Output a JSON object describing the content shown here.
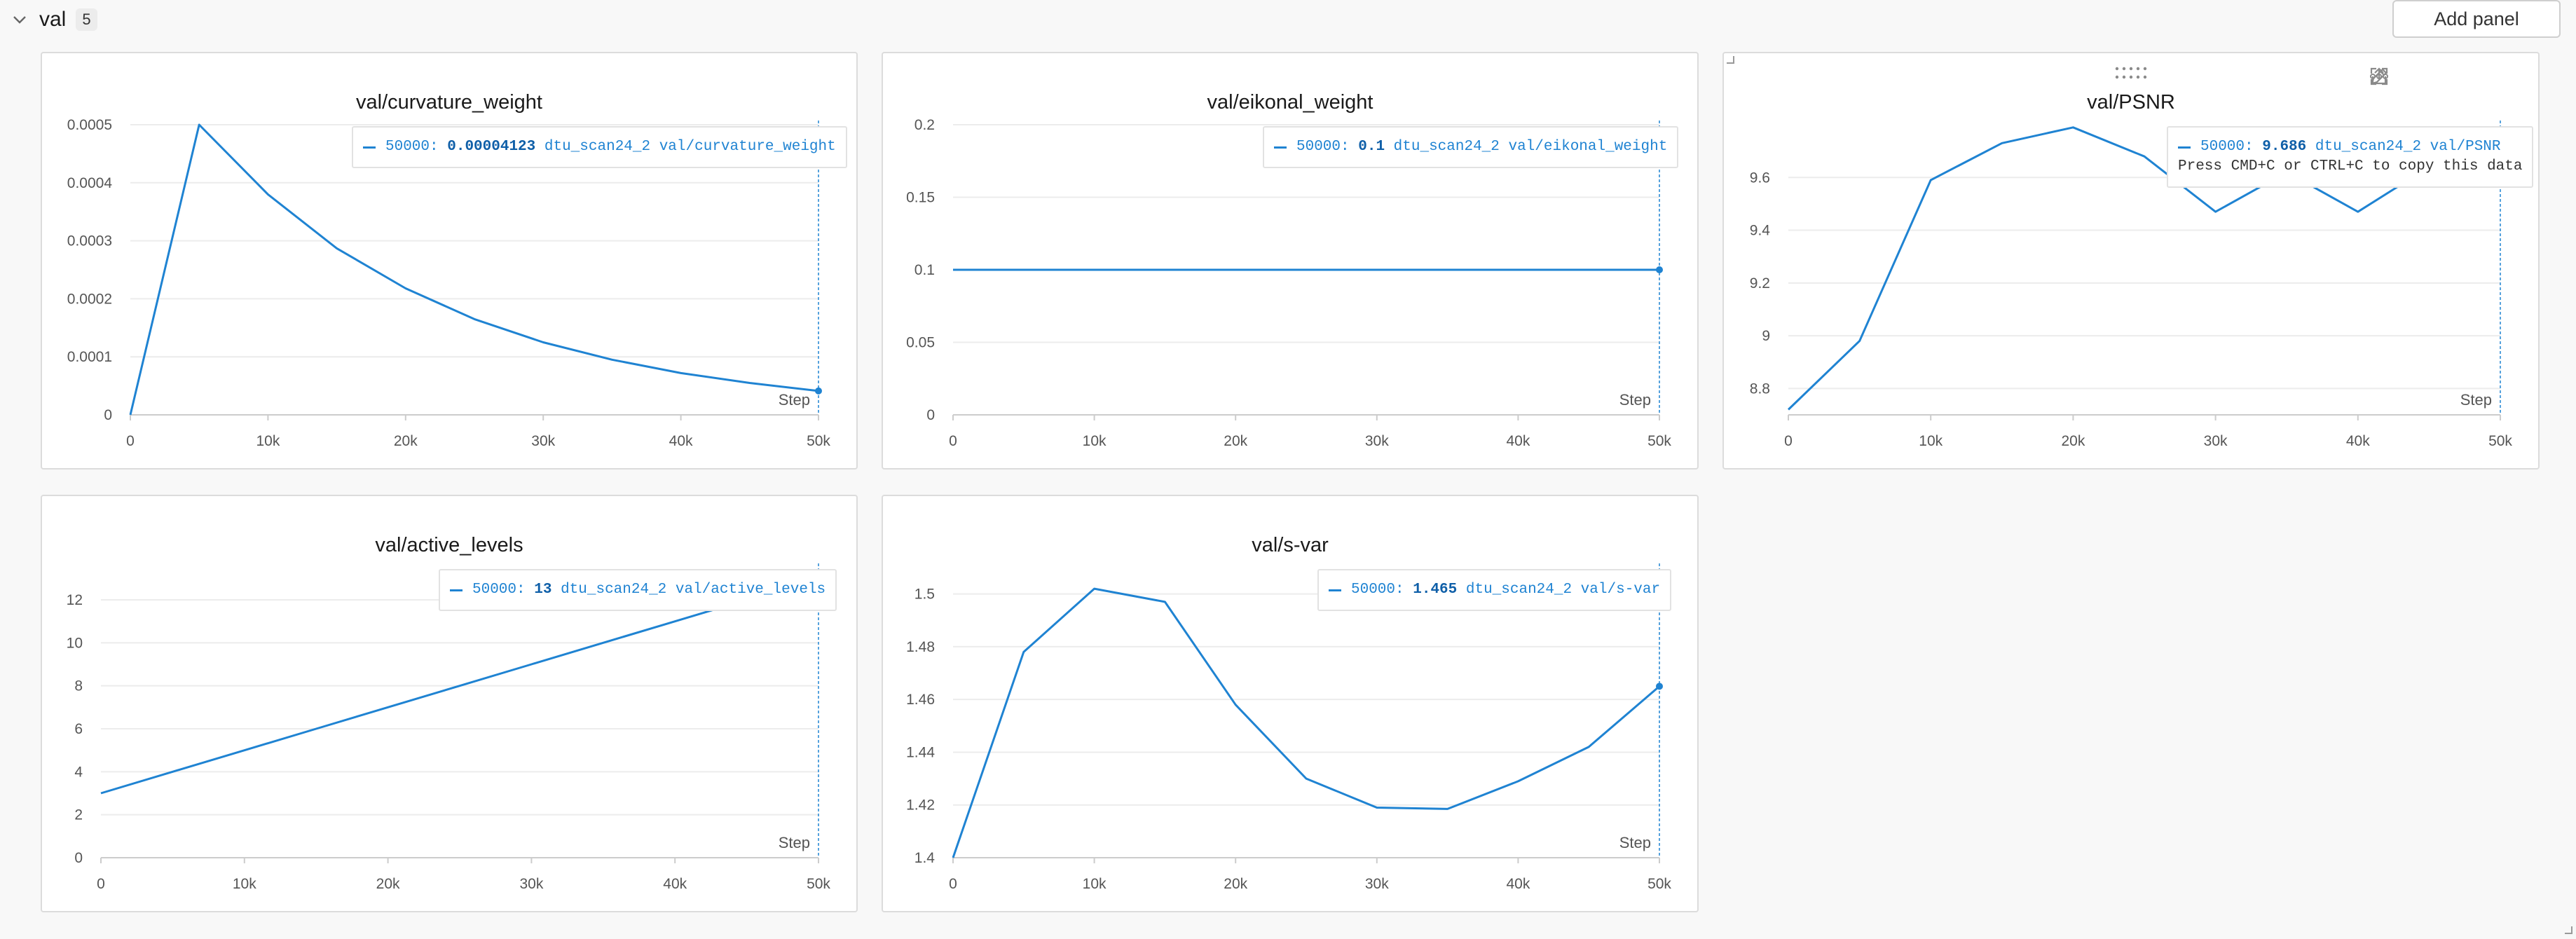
{
  "section": {
    "title": "val",
    "count": "5"
  },
  "toolbar": {
    "add_panel_label": "Add panel"
  },
  "colors": {
    "line": "#1f83d2",
    "grid": "#ececec",
    "axis": "#cccccc"
  },
  "icons": {
    "section_toggle": "chevron-down-icon",
    "panel_tools": [
      "share-icon",
      "edit-icon",
      "fullscreen-icon",
      "more-icon"
    ]
  },
  "panels": [
    {
      "title": "val/curvature_weight",
      "tooltip": {
        "step": "50000:",
        "value": "0.00004123",
        "label": "dtu_scan24_2 val/curvature_weight"
      }
    },
    {
      "title": "val/eikonal_weight",
      "tooltip": {
        "step": "50000:",
        "value": "0.1",
        "label": "dtu_scan24_2 val/eikonal_weight"
      }
    },
    {
      "title": "val/PSNR",
      "tooltip": {
        "step": "50000:",
        "value": "9.686",
        "label": "dtu_scan24_2 val/PSNR",
        "note": "Press CMD+C or CTRL+C to copy this data"
      }
    },
    {
      "title": "val/active_levels",
      "tooltip": {
        "step": "50000:",
        "value": "13",
        "label": "dtu_scan24_2 val/active_levels"
      }
    },
    {
      "title": "val/s-var",
      "tooltip": {
        "step": "50000:",
        "value": "1.465",
        "label": "dtu_scan24_2 val/s-var"
      }
    }
  ],
  "chart_data": [
    {
      "type": "line",
      "title": "val/curvature_weight",
      "xlabel": "Step",
      "xlim": [
        0,
        50000
      ],
      "ylim": [
        0,
        0.0005
      ],
      "xticks": [
        0,
        10000,
        20000,
        30000,
        40000,
        50000
      ],
      "xtick_labels": [
        "0",
        "10k",
        "20k",
        "30k",
        "40k",
        "50k"
      ],
      "yticks": [
        0,
        0.0001,
        0.0002,
        0.0003,
        0.0004,
        0.0005
      ],
      "ytick_labels": [
        "0",
        "0.0001",
        "0.0002",
        "0.0003",
        "0.0004",
        "0.0005"
      ],
      "grid": true,
      "series": [
        {
          "x": [
            0,
            5000,
            10000,
            15000,
            20000,
            25000,
            30000,
            35000,
            40000,
            45000,
            50000
          ],
          "y": [
            0,
            0.0005,
            0.00038,
            0.000287,
            0.000218,
            0.000165,
            0.000125,
            9.5e-05,
            7.2e-05,
            5.5e-05,
            4.123e-05
          ]
        }
      ]
    },
    {
      "type": "line",
      "title": "val/eikonal_weight",
      "xlabel": "Step",
      "xlim": [
        0,
        50000
      ],
      "ylim": [
        0,
        0.2
      ],
      "xticks": [
        0,
        10000,
        20000,
        30000,
        40000,
        50000
      ],
      "xtick_labels": [
        "0",
        "10k",
        "20k",
        "30k",
        "40k",
        "50k"
      ],
      "yticks": [
        0,
        0.05,
        0.1,
        0.15,
        0.2
      ],
      "ytick_labels": [
        "0",
        "0.05",
        "0.1",
        "0.15",
        "0.2"
      ],
      "grid": true,
      "series": [
        {
          "x": [
            0,
            5000,
            10000,
            15000,
            20000,
            25000,
            30000,
            35000,
            40000,
            45000,
            50000
          ],
          "y": [
            0.1,
            0.1,
            0.1,
            0.1,
            0.1,
            0.1,
            0.1,
            0.1,
            0.1,
            0.1,
            0.1
          ]
        }
      ]
    },
    {
      "type": "line",
      "title": "val/PSNR",
      "xlabel": "Step",
      "xlim": [
        0,
        50000
      ],
      "ylim": [
        8.7,
        9.8
      ],
      "xticks": [
        0,
        10000,
        20000,
        30000,
        40000,
        50000
      ],
      "xtick_labels": [
        "0",
        "10k",
        "20k",
        "30k",
        "40k",
        "50k"
      ],
      "yticks": [
        8.8,
        9,
        9.2,
        9.4,
        9.6
      ],
      "ytick_labels": [
        "8.8",
        "9",
        "9.2",
        "9.4",
        "9.6"
      ],
      "grid": true,
      "series": [
        {
          "x": [
            0,
            5000,
            10000,
            15000,
            20000,
            25000,
            30000,
            35000,
            40000,
            45000,
            50000
          ],
          "y": [
            8.72,
            8.98,
            9.59,
            9.73,
            9.79,
            9.68,
            9.47,
            9.62,
            9.47,
            9.64,
            9.686
          ]
        }
      ]
    },
    {
      "type": "line",
      "title": "val/active_levels",
      "xlabel": "Step",
      "xlim": [
        0,
        50000
      ],
      "ylim": [
        0,
        13.5
      ],
      "xticks": [
        0,
        10000,
        20000,
        30000,
        40000,
        50000
      ],
      "xtick_labels": [
        "0",
        "10k",
        "20k",
        "30k",
        "40k",
        "50k"
      ],
      "yticks": [
        0,
        2,
        4,
        6,
        8,
        10,
        12
      ],
      "ytick_labels": [
        "0",
        "2",
        "4",
        "6",
        "8",
        "10",
        "12"
      ],
      "grid": true,
      "series": [
        {
          "x": [
            0,
            5000,
            10000,
            15000,
            20000,
            25000,
            30000,
            35000,
            40000,
            45000,
            50000
          ],
          "y": [
            3,
            4,
            5,
            6,
            7,
            8,
            9,
            10,
            11,
            12,
            13
          ]
        }
      ]
    },
    {
      "type": "line",
      "title": "val/s-var",
      "xlabel": "Step",
      "xlim": [
        0,
        50000
      ],
      "ylim": [
        1.4,
        1.51
      ],
      "xticks": [
        0,
        10000,
        20000,
        30000,
        40000,
        50000
      ],
      "xtick_labels": [
        "0",
        "10k",
        "20k",
        "30k",
        "40k",
        "50k"
      ],
      "yticks": [
        1.4,
        1.42,
        1.44,
        1.46,
        1.48,
        1.5
      ],
      "ytick_labels": [
        "1.4",
        "1.42",
        "1.44",
        "1.46",
        "1.48",
        "1.5"
      ],
      "grid": true,
      "series": [
        {
          "x": [
            0,
            5000,
            10000,
            15000,
            20000,
            25000,
            30000,
            35000,
            40000,
            45000,
            50000
          ],
          "y": [
            1.4,
            1.478,
            1.502,
            1.497,
            1.458,
            1.43,
            1.419,
            1.4185,
            1.429,
            1.442,
            1.465
          ]
        }
      ]
    }
  ]
}
